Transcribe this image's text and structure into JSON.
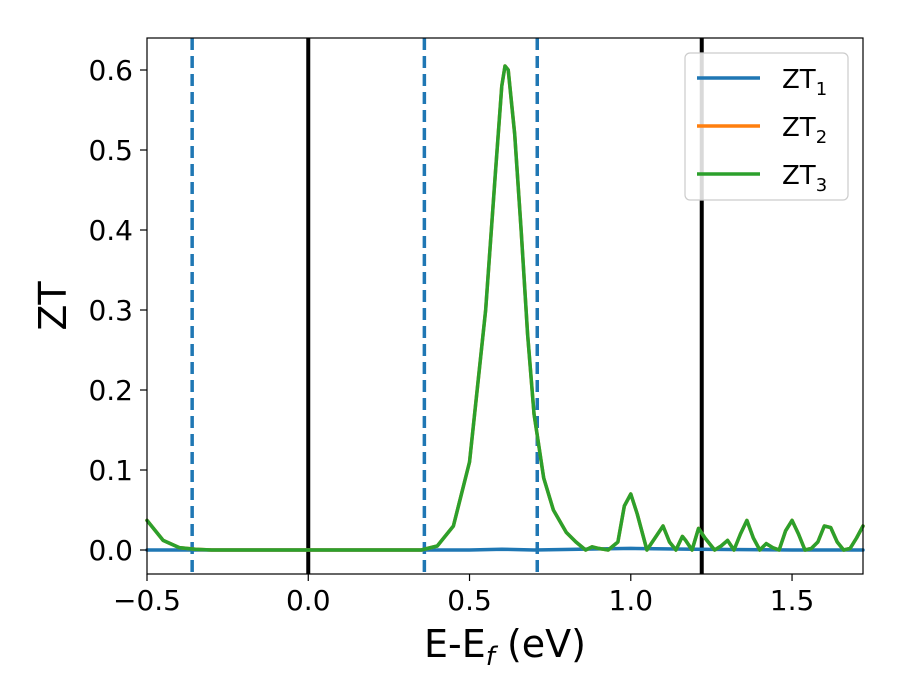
{
  "chart_data": {
    "type": "line",
    "xlabel": "E-E",
    "xlabel_sub": "f",
    "xlabel_unit": " (eV)",
    "ylabel": "ZT",
    "xlim": [
      -0.5,
      1.72
    ],
    "ylim": [
      -0.03,
      0.64
    ],
    "xticks": [
      -0.5,
      0.0,
      0.5,
      1.0,
      1.5
    ],
    "xtick_labels": [
      "−0.5",
      "0.0",
      "0.5",
      "1.0",
      "1.5"
    ],
    "yticks": [
      0.0,
      0.1,
      0.2,
      0.3,
      0.4,
      0.5,
      0.6
    ],
    "ytick_labels": [
      "0.0",
      "0.1",
      "0.2",
      "0.3",
      "0.4",
      "0.5",
      "0.6"
    ],
    "grid": false,
    "legend_position": "top-right",
    "series": [
      {
        "name": "ZT",
        "sub": "1",
        "color": "#1f77b4",
        "x": [
          -0.5,
          0.0,
          0.5,
          0.6,
          0.7,
          1.0,
          1.2,
          1.5,
          1.72
        ],
        "y": [
          0.0,
          0.0,
          0.0,
          0.001,
          0.0,
          0.002,
          0.001,
          0.0,
          0.0
        ]
      },
      {
        "name": "ZT",
        "sub": "2",
        "color": "#ff7f0e",
        "x": [
          -0.5,
          -0.45,
          -0.4,
          -0.35,
          -0.3,
          0.0,
          0.35,
          0.4,
          0.45,
          0.5,
          0.55,
          0.58,
          0.6,
          0.61,
          0.62,
          0.64,
          0.66,
          0.68,
          0.7,
          0.73,
          0.76,
          0.8,
          0.83,
          0.86,
          0.88,
          0.9,
          0.93,
          0.96,
          0.98,
          1.0,
          1.02,
          1.05,
          1.08,
          1.1,
          1.12,
          1.14,
          1.16,
          1.17,
          1.19,
          1.21,
          1.23,
          1.26,
          1.28,
          1.3,
          1.32,
          1.34,
          1.36,
          1.38,
          1.4,
          1.42,
          1.44,
          1.46,
          1.48,
          1.5,
          1.52,
          1.54,
          1.56,
          1.58,
          1.6,
          1.62,
          1.64,
          1.66,
          1.68,
          1.7,
          1.72
        ],
        "y": [
          0.037,
          0.012,
          0.003,
          0.001,
          0.0,
          0.0,
          0.0,
          0.005,
          0.03,
          0.11,
          0.3,
          0.47,
          0.58,
          0.605,
          0.6,
          0.52,
          0.4,
          0.27,
          0.17,
          0.09,
          0.05,
          0.022,
          0.01,
          0.0,
          0.004,
          0.002,
          0.0,
          0.01,
          0.055,
          0.07,
          0.045,
          0.0,
          0.018,
          0.03,
          0.01,
          0.0,
          0.017,
          0.012,
          0.0,
          0.027,
          0.015,
          0.0,
          0.005,
          0.012,
          0.0,
          0.02,
          0.037,
          0.015,
          0.0,
          0.008,
          0.003,
          0.0,
          0.024,
          0.037,
          0.02,
          0.0,
          0.002,
          0.01,
          0.03,
          0.028,
          0.01,
          0.0,
          0.002,
          0.015,
          0.03
        ]
      },
      {
        "name": "ZT",
        "sub": "3",
        "color": "#2ca02c",
        "x": [
          -0.5,
          -0.45,
          -0.4,
          -0.35,
          -0.3,
          0.0,
          0.35,
          0.4,
          0.45,
          0.5,
          0.55,
          0.58,
          0.6,
          0.61,
          0.62,
          0.64,
          0.66,
          0.68,
          0.7,
          0.73,
          0.76,
          0.8,
          0.83,
          0.86,
          0.88,
          0.9,
          0.93,
          0.96,
          0.98,
          1.0,
          1.02,
          1.05,
          1.08,
          1.1,
          1.12,
          1.14,
          1.16,
          1.17,
          1.19,
          1.21,
          1.23,
          1.26,
          1.28,
          1.3,
          1.32,
          1.34,
          1.36,
          1.38,
          1.4,
          1.42,
          1.44,
          1.46,
          1.48,
          1.5,
          1.52,
          1.54,
          1.56,
          1.58,
          1.6,
          1.62,
          1.64,
          1.66,
          1.68,
          1.7,
          1.72
        ],
        "y": [
          0.037,
          0.012,
          0.003,
          0.001,
          0.0,
          0.0,
          0.0,
          0.005,
          0.03,
          0.11,
          0.3,
          0.47,
          0.58,
          0.605,
          0.6,
          0.52,
          0.4,
          0.27,
          0.17,
          0.09,
          0.05,
          0.022,
          0.01,
          0.0,
          0.004,
          0.002,
          0.0,
          0.01,
          0.055,
          0.07,
          0.045,
          0.0,
          0.018,
          0.03,
          0.01,
          0.0,
          0.017,
          0.012,
          0.0,
          0.027,
          0.015,
          0.0,
          0.005,
          0.012,
          0.0,
          0.02,
          0.037,
          0.015,
          0.0,
          0.008,
          0.003,
          0.0,
          0.024,
          0.037,
          0.02,
          0.0,
          0.002,
          0.01,
          0.03,
          0.028,
          0.01,
          0.0,
          0.002,
          0.015,
          0.03
        ]
      }
    ],
    "vlines": [
      {
        "x": -0.36,
        "style": "dashed",
        "color": "#1f77b4"
      },
      {
        "x": 0.0,
        "style": "solid",
        "color": "#000000"
      },
      {
        "x": 0.36,
        "style": "dashed",
        "color": "#1f77b4"
      },
      {
        "x": 0.71,
        "style": "dashed",
        "color": "#1f77b4"
      },
      {
        "x": 1.22,
        "style": "solid",
        "color": "#000000"
      }
    ]
  }
}
